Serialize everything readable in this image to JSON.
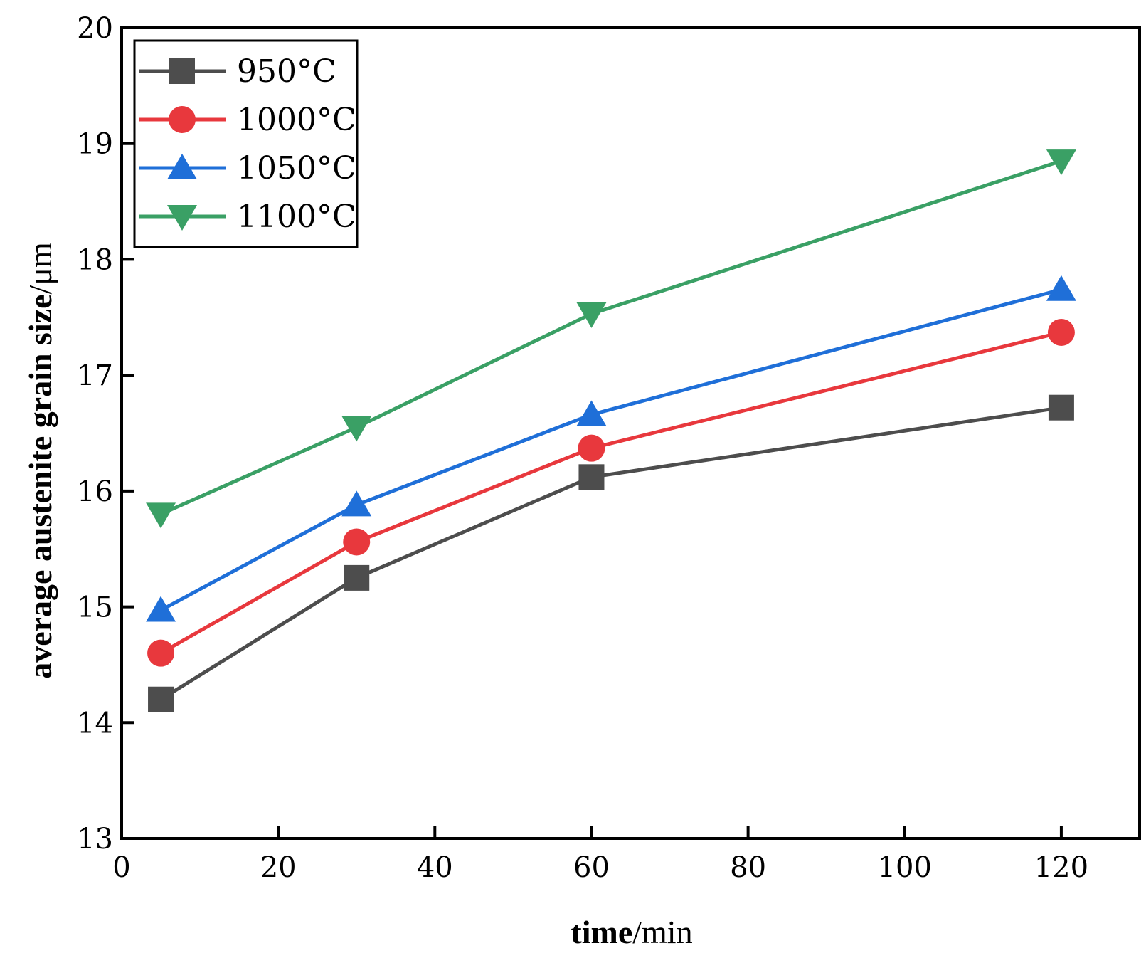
{
  "chart_data": {
    "type": "line",
    "title": "",
    "xlabel": {
      "bold_part": "time",
      "normal_part": "/min"
    },
    "ylabel": {
      "bold_part": "average austenite grain size",
      "normal_part": "/μm"
    },
    "xlim": [
      0,
      130
    ],
    "ylim": [
      13,
      20
    ],
    "x_ticks": [
      0,
      20,
      40,
      60,
      80,
      100,
      120
    ],
    "y_ticks": [
      13,
      14,
      15,
      16,
      17,
      18,
      19,
      20
    ],
    "x": [
      5,
      30,
      60,
      120
    ],
    "legend_position": "top-left",
    "series": [
      {
        "name": "950°C",
        "marker": "square",
        "color": "#4d4d4d",
        "values": [
          14.2,
          15.25,
          16.12,
          16.72
        ]
      },
      {
        "name": "1000°C",
        "marker": "circle",
        "color": "#e8383d",
        "values": [
          14.6,
          15.56,
          16.37,
          17.37
        ]
      },
      {
        "name": "1050°C",
        "marker": "triangle-up",
        "color": "#1f6fd8",
        "values": [
          14.97,
          15.88,
          16.66,
          17.74
        ]
      },
      {
        "name": "1100°C",
        "marker": "triangle-down",
        "color": "#3aa065",
        "values": [
          15.8,
          16.55,
          17.53,
          18.85
        ]
      }
    ]
  }
}
